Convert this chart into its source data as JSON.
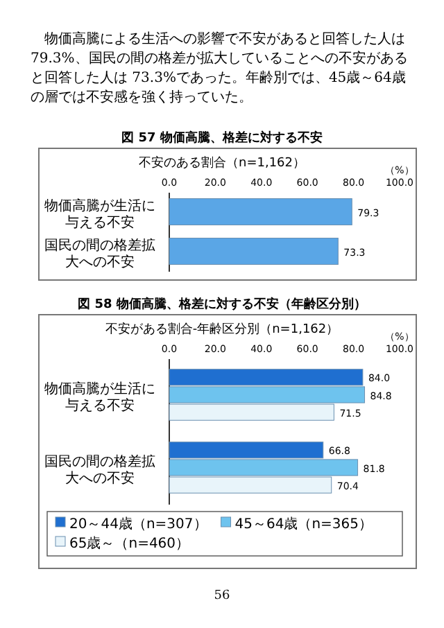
{
  "chart_data": [
    {
      "type": "bar",
      "orientation": "horizontal",
      "title": "図 57 物価高騰、格差に対する不安",
      "subtitle": "不安のある割合（n=1,162）",
      "xlabel": "（%）",
      "categories": [
        "物価高騰が生活に与える不安",
        "国民の間の格差拡大への不安"
      ],
      "values": [
        79.3,
        73.3
      ],
      "color": "#5aa6e6",
      "xlim": [
        0,
        100
      ],
      "xticks": [
        {
          "value": 0,
          "label": "0.0"
        },
        {
          "value": 20,
          "label": "20.0"
        },
        {
          "value": 40,
          "label": "40.0"
        },
        {
          "value": 60,
          "label": "60.0"
        },
        {
          "value": 80,
          "label": "80.0"
        },
        {
          "value": 100,
          "label": "100.0"
        }
      ],
      "data_labels": true,
      "grid": false,
      "legend": false,
      "annotations": [
        "物価高騰による生活への影響で不安があると回答した人は 79.3%、国民の間の格差が拡大していることへの不安があると回答した人は 73.3%であった。年齢別では、45歳～64歳の層では不安感を強く持っていた。"
      ]
    },
    {
      "type": "bar",
      "orientation": "horizontal",
      "title": "図 58 物価高騰、格差に対する不安（年齢区分別）",
      "subtitle": "不安がある割合‐年齢区分別（n=1,162）",
      "xlabel": "（%）",
      "categories": [
        "物価高騰が生活に与える不安",
        "国民の間の格差拡大への不安"
      ],
      "series": [
        {
          "name": "20～44歳（n=307）",
          "color": "#1f6fd0",
          "values": [
            84.0,
            66.8
          ],
          "value_labels": [
            "84.0",
            "66.8"
          ]
        },
        {
          "name": "45～64歳（n=365）",
          "color": "#6ec3ee",
          "values": [
            84.8,
            81.8
          ],
          "value_labels": [
            "84.8",
            "81.8"
          ]
        },
        {
          "name": "65歳～（n=460）",
          "color": "#e8f4fa",
          "values": [
            71.5,
            70.4
          ],
          "value_labels": [
            "71.5",
            "70.4"
          ]
        }
      ],
      "xlim": [
        0,
        100
      ],
      "xticks": [
        {
          "value": 0,
          "label": "0.0"
        },
        {
          "value": 20,
          "label": "20.0"
        },
        {
          "value": 40,
          "label": "40.0"
        },
        {
          "value": 60,
          "label": "60.0"
        },
        {
          "value": 80,
          "label": "80.0"
        },
        {
          "value": 100,
          "label": "100.0"
        }
      ],
      "grid": false,
      "legend": "bottom",
      "annotations": [
        "56"
      ]
    }
  ]
}
